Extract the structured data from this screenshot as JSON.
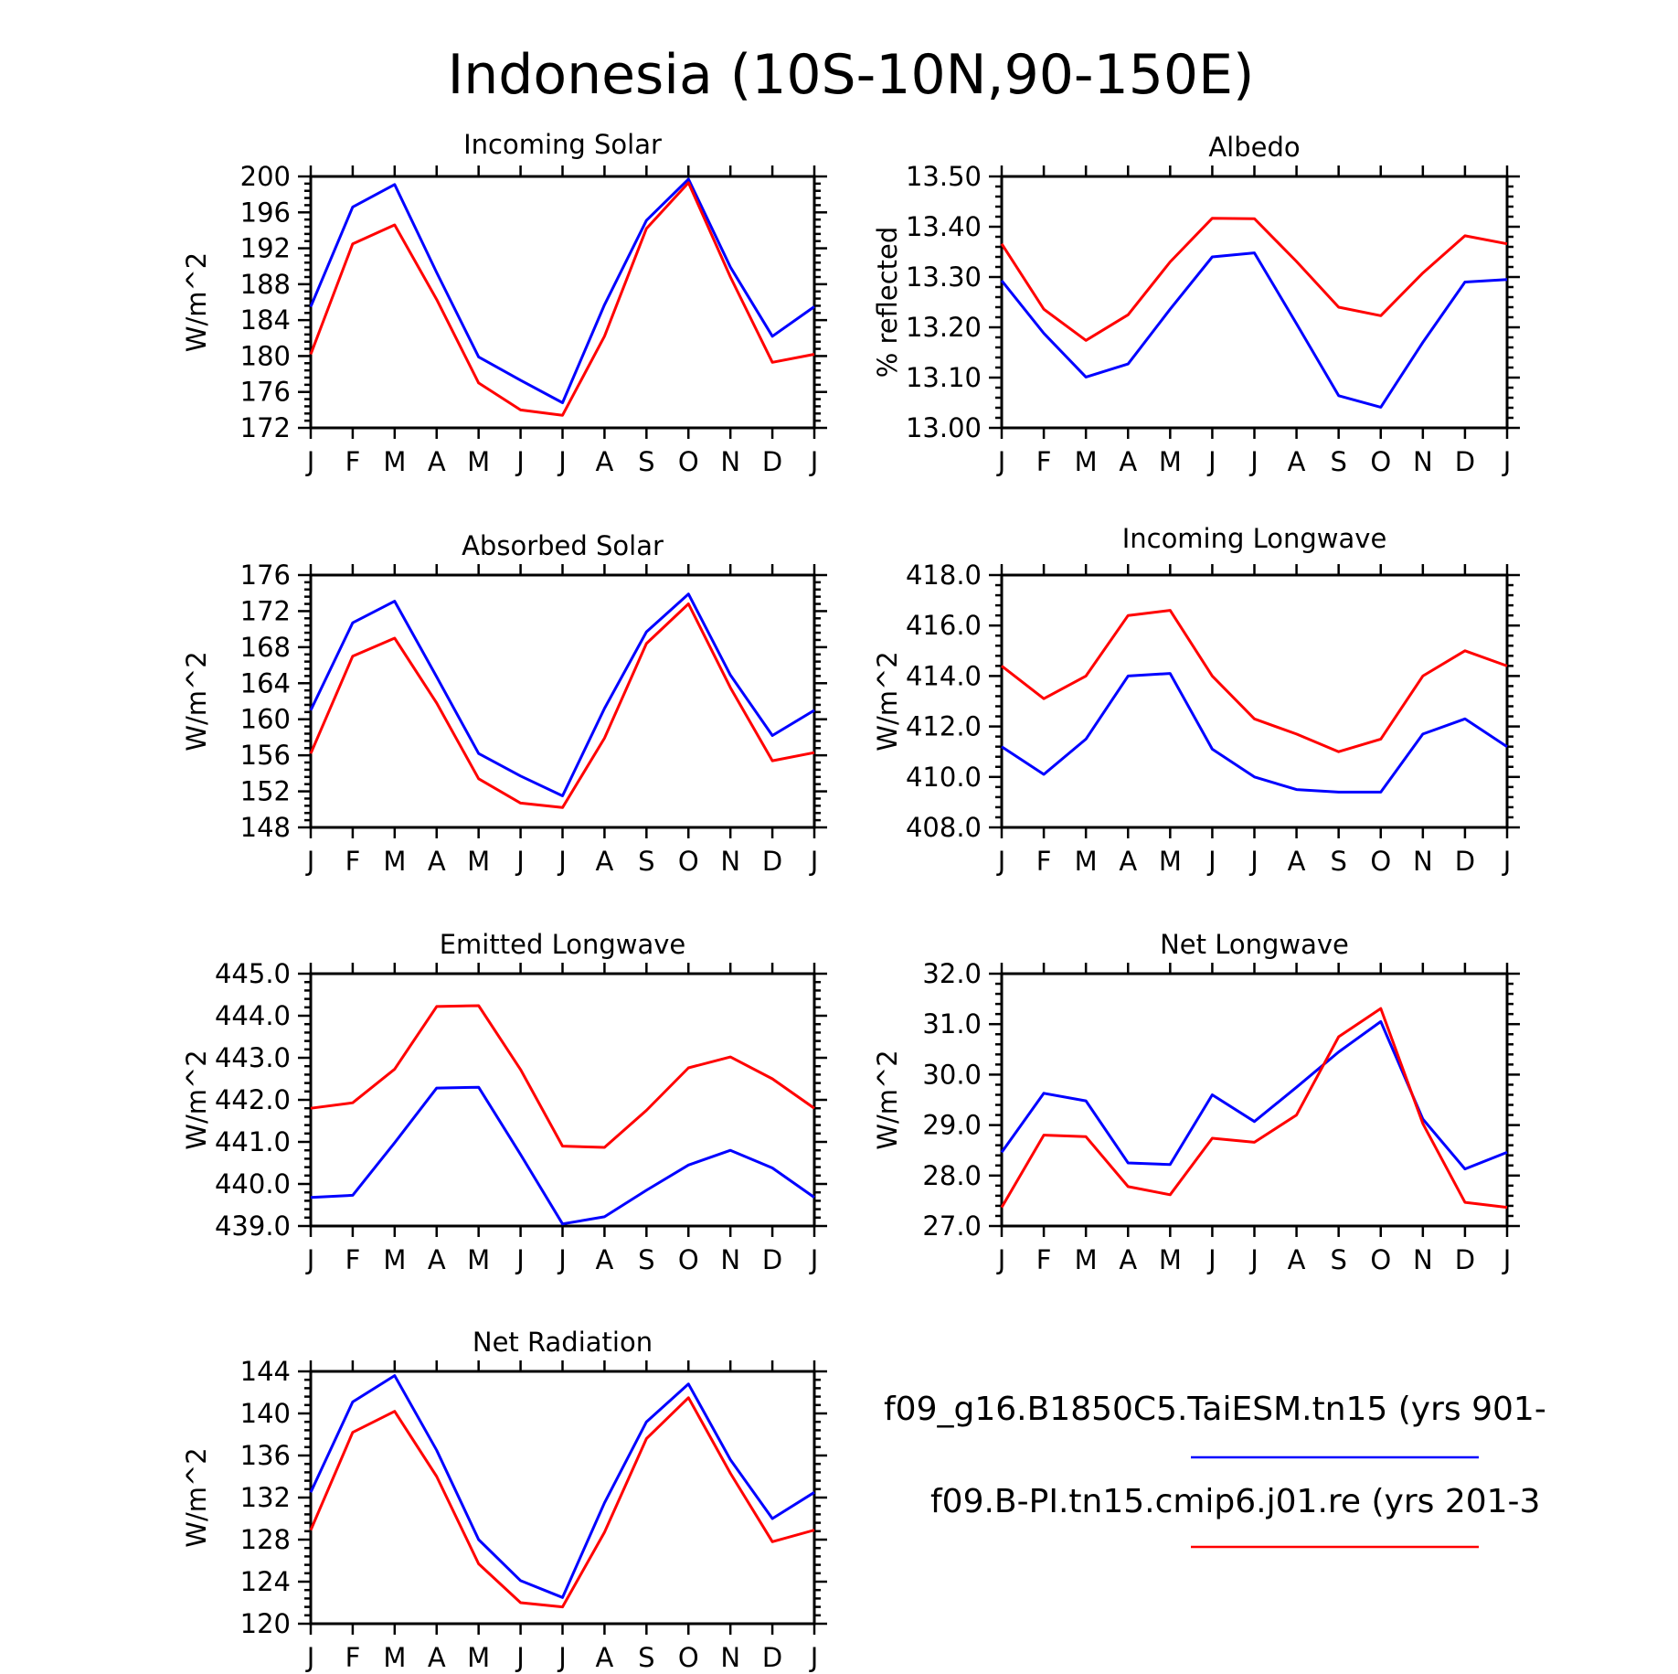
{
  "figure": {
    "title": "Indonesia (10S-10N,90-150E)"
  },
  "colors": {
    "blue": "#0000ff",
    "red": "#ff0000"
  },
  "legend": [
    {
      "label": "f09_g16.B1850C5.TaiESM.tn15 (yrs 901-",
      "color": "#0000ff"
    },
    {
      "label": "f09.B-PI.tn15.cmip6.j01.re (yrs 201-3",
      "color": "#ff0000"
    }
  ],
  "chart_data": [
    {
      "type": "line",
      "title": "Incoming Solar",
      "ylabel": "W/m^2",
      "categories": [
        "J",
        "F",
        "M",
        "A",
        "M",
        "J",
        "J",
        "A",
        "S",
        "O",
        "N",
        "D",
        "J"
      ],
      "ylim": [
        172,
        200
      ],
      "yticks": [
        "172",
        "176",
        "180",
        "184",
        "188",
        "192",
        "196",
        "200"
      ],
      "series": [
        {
          "color": "#0000ff",
          "values": [
            185.5,
            196.6,
            199.1,
            189.3,
            179.9,
            177.3,
            174.8,
            185.7,
            195.1,
            199.7,
            189.9,
            182.2,
            185.5
          ]
        },
        {
          "color": "#ff0000",
          "values": [
            180.2,
            192.5,
            194.6,
            186.3,
            177.0,
            174.0,
            173.4,
            182.2,
            194.2,
            199.3,
            188.8,
            179.3,
            180.2
          ]
        }
      ]
    },
    {
      "type": "line",
      "title": "Albedo",
      "ylabel": "% reflected",
      "categories": [
        "J",
        "F",
        "M",
        "A",
        "M",
        "J",
        "J",
        "A",
        "S",
        "O",
        "N",
        "D",
        "J"
      ],
      "ylim": [
        13.0,
        13.5
      ],
      "yticks": [
        "13.00",
        "13.10",
        "13.20",
        "13.30",
        "13.40",
        "13.50"
      ],
      "series": [
        {
          "color": "#0000ff",
          "values": [
            13.293,
            13.188,
            13.101,
            13.127,
            13.236,
            13.34,
            13.348,
            13.207,
            13.064,
            13.041,
            13.17,
            13.29,
            13.295
          ]
        },
        {
          "color": "#ff0000",
          "values": [
            13.366,
            13.236,
            13.174,
            13.225,
            13.33,
            13.417,
            13.416,
            13.331,
            13.24,
            13.223,
            13.308,
            13.382,
            13.366
          ]
        }
      ]
    },
    {
      "type": "line",
      "title": "Absorbed Solar",
      "ylabel": "W/m^2",
      "categories": [
        "J",
        "F",
        "M",
        "A",
        "M",
        "J",
        "J",
        "A",
        "S",
        "O",
        "N",
        "D",
        "J"
      ],
      "ylim": [
        148,
        176
      ],
      "yticks": [
        "148",
        "152",
        "156",
        "160",
        "164",
        "168",
        "172",
        "176"
      ],
      "series": [
        {
          "color": "#0000ff",
          "values": [
            161.0,
            170.7,
            173.1,
            164.7,
            156.2,
            153.7,
            151.5,
            161.2,
            169.7,
            173.9,
            164.9,
            158.2,
            161.0
          ]
        },
        {
          "color": "#ff0000",
          "values": [
            156.2,
            167.0,
            169.0,
            161.8,
            153.4,
            150.7,
            150.2,
            157.9,
            168.4,
            172.8,
            163.5,
            155.4,
            156.3
          ]
        }
      ]
    },
    {
      "type": "line",
      "title": "Incoming Longwave",
      "ylabel": "W/m^2",
      "categories": [
        "J",
        "F",
        "M",
        "A",
        "M",
        "J",
        "J",
        "A",
        "S",
        "O",
        "N",
        "D",
        "J"
      ],
      "ylim": [
        408.0,
        418.0
      ],
      "yticks": [
        "408.0",
        "410.0",
        "412.0",
        "414.0",
        "416.0",
        "418.0"
      ],
      "series": [
        {
          "color": "#0000ff",
          "values": [
            411.2,
            410.1,
            411.5,
            414.0,
            414.1,
            411.1,
            410.0,
            409.5,
            409.4,
            409.4,
            411.7,
            412.3,
            411.2
          ]
        },
        {
          "color": "#ff0000",
          "values": [
            414.4,
            413.1,
            414.0,
            416.4,
            416.6,
            414.0,
            412.3,
            411.7,
            411.0,
            411.5,
            414.0,
            415.0,
            414.4
          ]
        }
      ]
    },
    {
      "type": "line",
      "title": "Emitted Longwave",
      "ylabel": "W/m^2",
      "categories": [
        "J",
        "F",
        "M",
        "A",
        "M",
        "J",
        "J",
        "A",
        "S",
        "O",
        "N",
        "D",
        "J"
      ],
      "ylim": [
        439.0,
        445.0
      ],
      "yticks": [
        "439.0",
        "440.0",
        "441.0",
        "442.0",
        "443.0",
        "444.0",
        "445.0"
      ],
      "series": [
        {
          "color": "#0000ff",
          "values": [
            439.68,
            439.73,
            440.98,
            442.28,
            442.3,
            440.7,
            439.05,
            439.22,
            439.85,
            440.45,
            440.8,
            440.38,
            439.68
          ]
        },
        {
          "color": "#ff0000",
          "values": [
            441.8,
            441.93,
            442.73,
            444.22,
            444.24,
            442.72,
            440.9,
            440.87,
            441.75,
            442.76,
            443.02,
            442.5,
            441.8
          ]
        }
      ]
    },
    {
      "type": "line",
      "title": "Net Longwave",
      "ylabel": "W/m^2",
      "categories": [
        "J",
        "F",
        "M",
        "A",
        "M",
        "J",
        "J",
        "A",
        "S",
        "O",
        "N",
        "D",
        "J"
      ],
      "ylim": [
        27.0,
        32.0
      ],
      "yticks": [
        "27.0",
        "28.0",
        "29.0",
        "30.0",
        "31.0",
        "32.0"
      ],
      "series": [
        {
          "color": "#0000ff",
          "values": [
            28.46,
            29.63,
            29.48,
            28.25,
            28.22,
            29.6,
            29.07,
            29.75,
            30.45,
            31.05,
            29.12,
            28.13,
            28.46
          ]
        },
        {
          "color": "#ff0000",
          "values": [
            27.37,
            28.8,
            28.77,
            27.78,
            27.62,
            28.74,
            28.66,
            29.2,
            30.75,
            31.31,
            29.03,
            27.47,
            27.37
          ]
        }
      ]
    },
    {
      "type": "line",
      "title": "Net Radiation",
      "ylabel": "W/m^2",
      "categories": [
        "J",
        "F",
        "M",
        "A",
        "M",
        "J",
        "J",
        "A",
        "S",
        "O",
        "N",
        "D",
        "J"
      ],
      "ylim": [
        120,
        144
      ],
      "yticks": [
        "120",
        "124",
        "128",
        "132",
        "136",
        "140",
        "144"
      ],
      "series": [
        {
          "color": "#0000ff",
          "values": [
            132.5,
            141.1,
            143.6,
            136.5,
            128.0,
            124.1,
            122.5,
            131.5,
            139.2,
            142.8,
            135.6,
            130.0,
            132.5
          ]
        },
        {
          "color": "#ff0000",
          "values": [
            128.9,
            138.2,
            140.2,
            134.0,
            125.7,
            122.0,
            121.6,
            128.7,
            137.6,
            141.5,
            134.3,
            127.8,
            128.9
          ]
        }
      ]
    }
  ]
}
